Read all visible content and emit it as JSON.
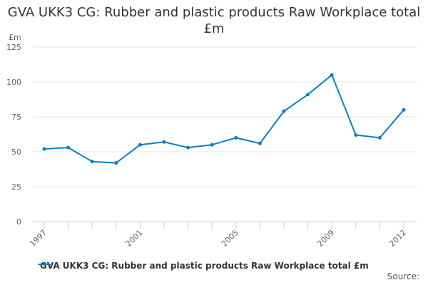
{
  "chart_data": {
    "type": "line",
    "title": "GVA UKK3 CG: Rubber and plastic products Raw Workplace total £m",
    "ylabel": "£m",
    "xlabel": "",
    "x": [
      1997,
      1998,
      1999,
      2000,
      2001,
      2002,
      2003,
      2004,
      2005,
      2006,
      2007,
      2008,
      2009,
      2010,
      2011,
      2012
    ],
    "x_tick_labels": [
      "1997",
      "2001",
      "2005",
      "2009",
      "2012"
    ],
    "y_ticks": [
      0,
      25,
      50,
      75,
      100,
      125
    ],
    "ylim": [
      0,
      125
    ],
    "grid": true,
    "legend_placement": "bottom",
    "series": [
      {
        "name": "GVA UKK3 CG: Rubber and plastic products Raw Workplace total £m",
        "color": "#0e7dc2",
        "values": [
          52,
          53,
          43,
          42,
          55,
          57,
          53,
          55,
          60,
          56,
          79,
          91,
          105,
          62,
          60,
          80
        ]
      }
    ]
  },
  "source_label": "Source:"
}
